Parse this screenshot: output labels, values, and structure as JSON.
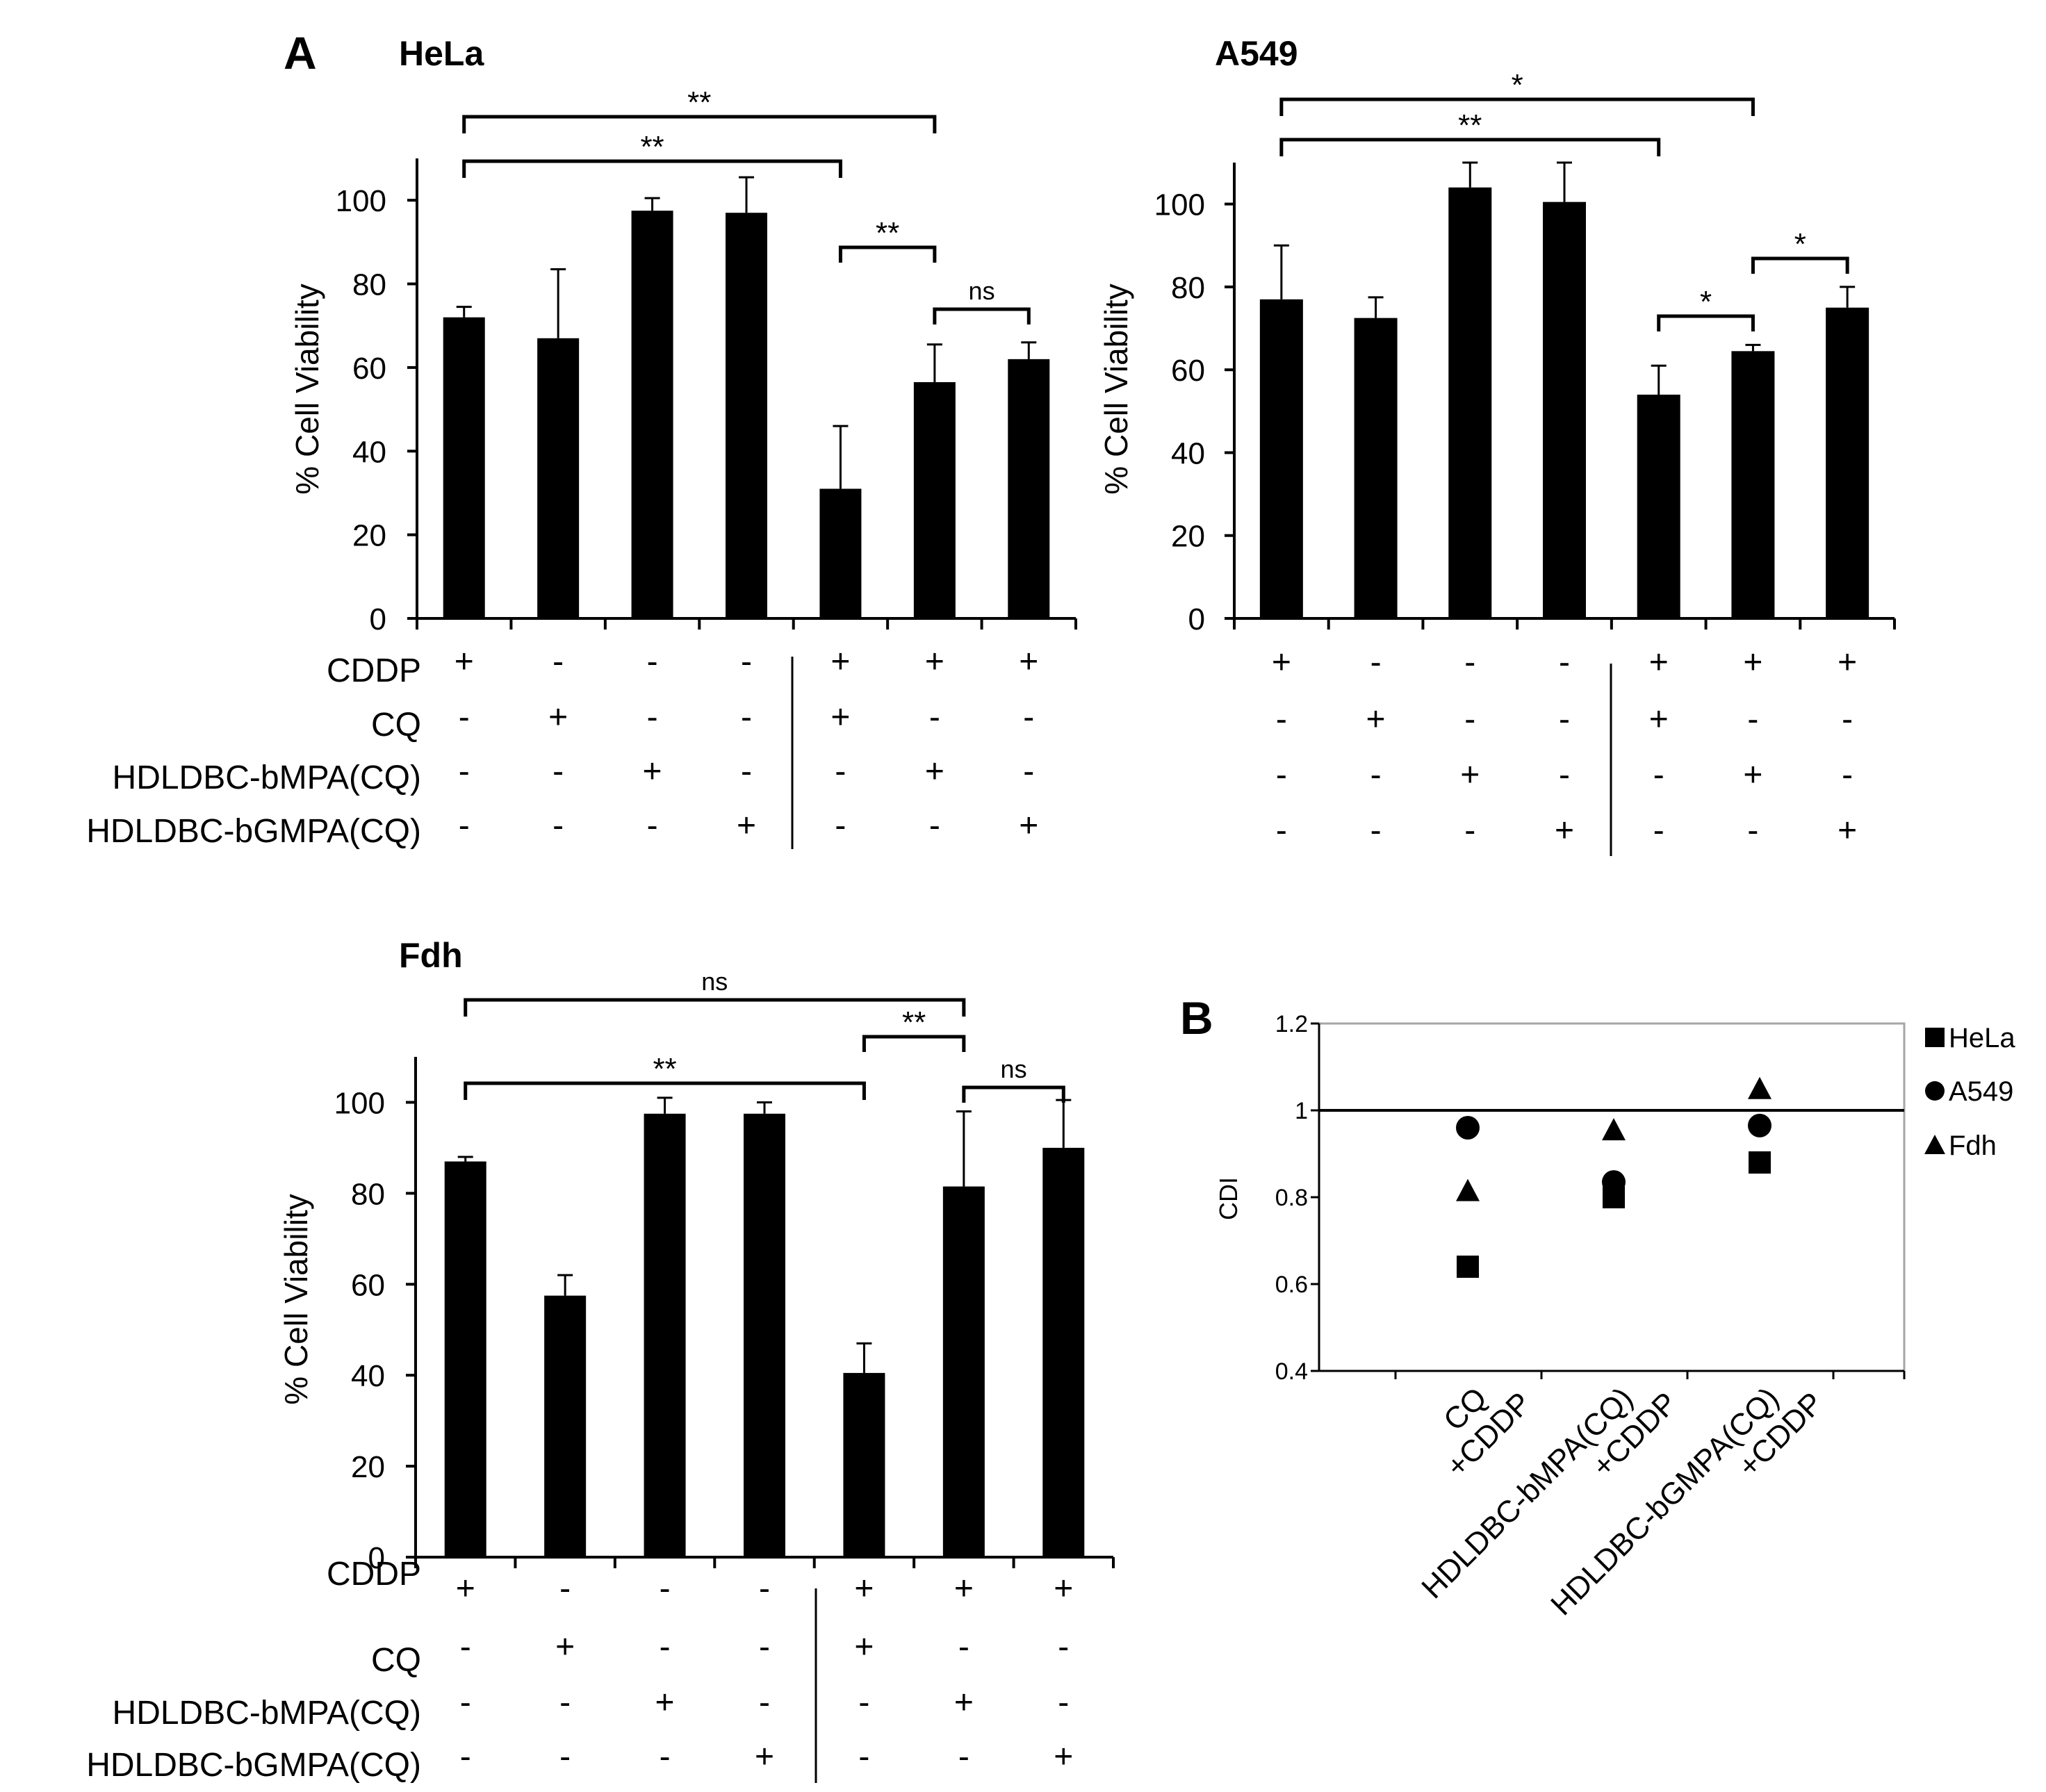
{
  "panel_labels": {
    "a": "A",
    "b": "B"
  },
  "row_labels": [
    "CDDP",
    "CQ",
    "HDLDBC-bMPA(CQ)",
    "HDLDBC-bGMPA(CQ)"
  ],
  "colors": {
    "bar": "#000000",
    "axis": "#000000",
    "frame": "#a6a6a6",
    "background": "#ffffff"
  },
  "chart_data": [
    {
      "id": "hela",
      "type": "bar",
      "title": "HeLa",
      "ylabel": "% Cell Viability",
      "ylim": [
        0,
        110
      ],
      "yticks": [
        0,
        20,
        40,
        60,
        80,
        100
      ],
      "values": [
        72,
        67,
        97.5,
        97,
        31,
        56.5,
        62
      ],
      "errors": [
        2.5,
        16.5,
        3,
        8.5,
        15,
        9,
        4
      ],
      "treatment_matrix": [
        [
          "+",
          "-",
          "-",
          "-",
          "+",
          "+",
          "+"
        ],
        [
          "-",
          "+",
          "-",
          "-",
          "+",
          "-",
          "-"
        ],
        [
          "-",
          "-",
          "+",
          "-",
          "-",
          "+",
          "-"
        ],
        [
          "-",
          "-",
          "-",
          "+",
          "-",
          "-",
          "+"
        ]
      ],
      "comparisons": [
        {
          "from": 1,
          "to": 6,
          "label": "**"
        },
        {
          "from": 1,
          "to": 5,
          "label": "**"
        },
        {
          "from": 5,
          "to": 6,
          "label": "**"
        },
        {
          "from": 6,
          "to": 7,
          "label": "ns"
        }
      ]
    },
    {
      "id": "a549",
      "type": "bar",
      "title": "A549",
      "ylabel": "% Cell Viability",
      "ylim": [
        0,
        110
      ],
      "yticks": [
        0,
        20,
        40,
        60,
        80,
        100
      ],
      "values": [
        77,
        72.5,
        104,
        100.5,
        54,
        64.5,
        75
      ],
      "errors": [
        13,
        5,
        6,
        9.5,
        7,
        1.5,
        5
      ],
      "treatment_matrix": [
        [
          "+",
          "-",
          "-",
          "-",
          "+",
          "+",
          "+"
        ],
        [
          "-",
          "+",
          "-",
          "-",
          "+",
          "-",
          "-"
        ],
        [
          "-",
          "-",
          "+",
          "-",
          "-",
          "+",
          "-"
        ],
        [
          "-",
          "-",
          "-",
          "+",
          "-",
          "-",
          "+"
        ]
      ],
      "comparisons": [
        {
          "from": 1,
          "to": 6,
          "label": "*"
        },
        {
          "from": 1,
          "to": 5,
          "label": "**"
        },
        {
          "from": 5,
          "to": 6,
          "label": "*"
        },
        {
          "from": 6,
          "to": 7,
          "label": "*"
        }
      ]
    },
    {
      "id": "fdh",
      "type": "bar",
      "title": "Fdh",
      "ylabel": "% Cell Viability",
      "ylim": [
        0,
        110
      ],
      "yticks": [
        0,
        20,
        40,
        60,
        80,
        100
      ],
      "values": [
        87,
        57.5,
        97.5,
        97.5,
        40.5,
        81.5,
        90
      ],
      "errors": [
        1,
        4.5,
        3.5,
        2.5,
        6.5,
        16.5,
        10.5
      ],
      "treatment_matrix": [
        [
          "+",
          "-",
          "-",
          "-",
          "+",
          "+",
          "+"
        ],
        [
          "-",
          "+",
          "-",
          "-",
          "+",
          "-",
          "-"
        ],
        [
          "-",
          "-",
          "+",
          "-",
          "-",
          "+",
          "-"
        ],
        [
          "-",
          "-",
          "-",
          "+",
          "-",
          "-",
          "+"
        ]
      ],
      "comparisons": [
        {
          "from": 1,
          "to": 6,
          "label": "ns"
        },
        {
          "from": 1,
          "to": 5,
          "label": "**"
        },
        {
          "from": 5,
          "to": 6,
          "label": "**"
        },
        {
          "from": 6,
          "to": 7,
          "label": "ns"
        }
      ]
    },
    {
      "id": "cdi",
      "type": "scatter",
      "title": "",
      "ylabel": "CDI",
      "ylim": [
        0.4,
        1.2
      ],
      "yticks": [
        0.4,
        0.6,
        0.8,
        1,
        1.2
      ],
      "ytick_labels": [
        "0.4",
        "0.6",
        "0.8",
        "1",
        "1.2"
      ],
      "reference_line": 1,
      "categories": [
        [
          "CQ",
          "+CDDP"
        ],
        [
          "HDLDBC-bMPA(CQ)",
          "+CDDP"
        ],
        [
          "HDLDBC-bGMPA(CQ)",
          "+CDDP"
        ]
      ],
      "series": [
        {
          "name": "HeLa",
          "marker": "square",
          "values": [
            0.64,
            0.8,
            0.88
          ]
        },
        {
          "name": "A549",
          "marker": "circle",
          "values": [
            0.96,
            0.835,
            0.965
          ]
        },
        {
          "name": "Fdh",
          "marker": "triangle",
          "values": [
            0.815,
            0.955,
            1.05
          ]
        }
      ]
    }
  ]
}
